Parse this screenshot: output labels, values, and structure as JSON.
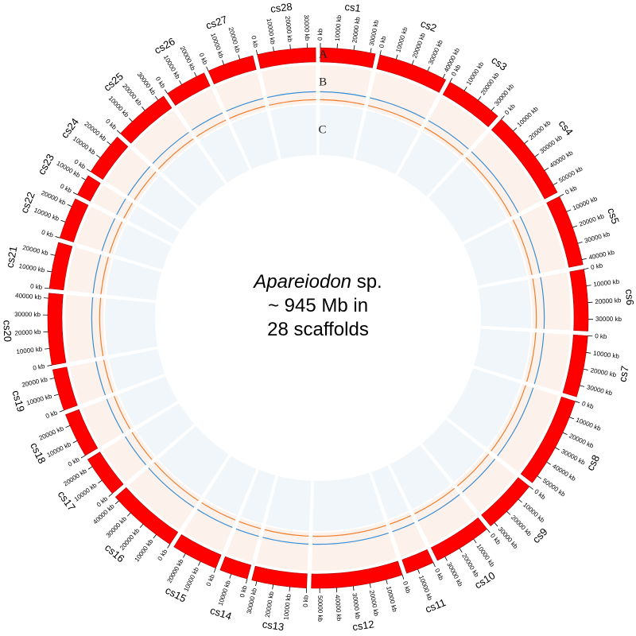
{
  "title": {
    "genus": "Apareiodon",
    "suffix": " sp.",
    "line2": "~ 945 Mb in",
    "line3": "28 scaffolds"
  },
  "tracks": [
    "A",
    "B",
    "C"
  ],
  "scaffolds": [
    {
      "name": "cs1",
      "length": 33000,
      "ticks": [
        {
          "value": 0,
          "label": "0 kb"
        },
        {
          "value": 10000,
          "label": "10000 kb"
        },
        {
          "value": 20000,
          "label": "20000 kb"
        },
        {
          "value": 30000,
          "label": "30000 kb"
        }
      ]
    },
    {
      "name": "cs2",
      "length": 42000,
      "ticks": [
        {
          "value": 0,
          "label": "0 kb"
        },
        {
          "value": 10000,
          "label": "10000 kb"
        },
        {
          "value": 20000,
          "label": "20000 kb"
        },
        {
          "value": 30000,
          "label": "30000 kb"
        },
        {
          "value": 40000,
          "label": "40000 kb"
        }
      ]
    },
    {
      "name": "cs3",
      "length": 35000,
      "ticks": [
        {
          "value": 0,
          "label": "0 kb"
        },
        {
          "value": 10000,
          "label": "10000 kb"
        },
        {
          "value": 20000,
          "label": "20000 kb"
        },
        {
          "value": 30000,
          "label": "30000 kb"
        }
      ]
    },
    {
      "name": "cs4",
      "length": 55000,
      "ticks": [
        {
          "value": 0,
          "label": "0 kb"
        },
        {
          "value": 10000,
          "label": "10000 kb"
        },
        {
          "value": 20000,
          "label": "20000 kb"
        },
        {
          "value": 30000,
          "label": "30000 kb"
        },
        {
          "value": 40000,
          "label": "40000 kb"
        },
        {
          "value": 50000,
          "label": "50000 kb"
        }
      ]
    },
    {
      "name": "cs5",
      "length": 43000,
      "ticks": [
        {
          "value": 0,
          "label": "0 kb"
        },
        {
          "value": 10000,
          "label": "10000 kb"
        },
        {
          "value": 20000,
          "label": "20000 kb"
        },
        {
          "value": 30000,
          "label": "30000 kb"
        },
        {
          "value": 40000,
          "label": "40000 kb"
        }
      ]
    },
    {
      "name": "cs6",
      "length": 37000,
      "ticks": [
        {
          "value": 0,
          "label": "0 kb"
        },
        {
          "value": 10000,
          "label": "10000 kb"
        },
        {
          "value": 20000,
          "label": "20000 kb"
        },
        {
          "value": 30000,
          "label": "30000 kb"
        }
      ]
    },
    {
      "name": "cs7",
      "length": 37000,
      "ticks": [
        {
          "value": 0,
          "label": "0 kb"
        },
        {
          "value": 10000,
          "label": "10000 kb"
        },
        {
          "value": 20000,
          "label": "20000 kb"
        },
        {
          "value": 30000,
          "label": "30000 kb"
        }
      ]
    },
    {
      "name": "cs8",
      "length": 55000,
      "ticks": [
        {
          "value": 0,
          "label": "0 kb"
        },
        {
          "value": 10000,
          "label": "10000 kb"
        },
        {
          "value": 20000,
          "label": "20000 kb"
        },
        {
          "value": 30000,
          "label": "30000 kb"
        },
        {
          "value": 40000,
          "label": "40000 kb"
        },
        {
          "value": 50000,
          "label": "50000 kb"
        }
      ]
    },
    {
      "name": "cs9",
      "length": 33000,
      "ticks": [
        {
          "value": 0,
          "label": "0 kb"
        },
        {
          "value": 10000,
          "label": "10000 kb"
        },
        {
          "value": 20000,
          "label": "20000 kb"
        },
        {
          "value": 30000,
          "label": "30000 kb"
        }
      ]
    },
    {
      "name": "cs10",
      "length": 35000,
      "ticks": [
        {
          "value": 0,
          "label": "0 kb"
        },
        {
          "value": 10000,
          "label": "10000 kb"
        },
        {
          "value": 20000,
          "label": "20000 kb"
        },
        {
          "value": 30000,
          "label": "30000 kb"
        }
      ]
    },
    {
      "name": "cs11",
      "length": 17000,
      "ticks": [
        {
          "value": 0,
          "label": "0 kb"
        },
        {
          "value": 10000,
          "label": "10000 kb"
        }
      ]
    },
    {
      "name": "cs12",
      "length": 55000,
      "ticks": [
        {
          "value": 0,
          "label": "0 kb"
        },
        {
          "value": 10000,
          "label": "10000 kb"
        },
        {
          "value": 20000,
          "label": "20000 kb"
        },
        {
          "value": 30000,
          "label": "30000 kb"
        },
        {
          "value": 40000,
          "label": "40000 kb"
        },
        {
          "value": 50000,
          "label": "50000 kb"
        }
      ]
    },
    {
      "name": "cs13",
      "length": 33000,
      "ticks": [
        {
          "value": 0,
          "label": "0 kb"
        },
        {
          "value": 10000,
          "label": "10000 kb"
        },
        {
          "value": 20000,
          "label": "20000 kb"
        },
        {
          "value": 30000,
          "label": "30000 kb"
        }
      ]
    },
    {
      "name": "cs14",
      "length": 17000,
      "ticks": [
        {
          "value": 0,
          "label": "0 kb"
        },
        {
          "value": 10000,
          "label": "10000 kb"
        }
      ]
    },
    {
      "name": "cs15",
      "length": 28000,
      "ticks": [
        {
          "value": 0,
          "label": "0 kb"
        },
        {
          "value": 10000,
          "label": "10000 kb"
        },
        {
          "value": 20000,
          "label": "20000 kb"
        }
      ]
    },
    {
      "name": "cs16",
      "length": 43000,
      "ticks": [
        {
          "value": 0,
          "label": "0 kb"
        },
        {
          "value": 10000,
          "label": "10000 kb"
        },
        {
          "value": 20000,
          "label": "20000 kb"
        },
        {
          "value": 30000,
          "label": "30000 kb"
        },
        {
          "value": 40000,
          "label": "40000 kb"
        }
      ]
    },
    {
      "name": "cs17",
      "length": 25000,
      "ticks": [
        {
          "value": 0,
          "label": "0 kb"
        },
        {
          "value": 10000,
          "label": "10000 kb"
        },
        {
          "value": 20000,
          "label": "20000 kb"
        }
      ]
    },
    {
      "name": "cs18",
      "length": 27000,
      "ticks": [
        {
          "value": 0,
          "label": "0 kb"
        },
        {
          "value": 10000,
          "label": "10000 kb"
        },
        {
          "value": 20000,
          "label": "20000 kb"
        }
      ]
    },
    {
      "name": "cs19",
      "length": 25000,
      "ticks": [
        {
          "value": 0,
          "label": "0 kb"
        },
        {
          "value": 10000,
          "label": "10000 kb"
        },
        {
          "value": 20000,
          "label": "20000 kb"
        }
      ]
    },
    {
      "name": "cs20",
      "length": 43000,
      "ticks": [
        {
          "value": 0,
          "label": "0 kb"
        },
        {
          "value": 10000,
          "label": "10000 kb"
        },
        {
          "value": 20000,
          "label": "20000 kb"
        },
        {
          "value": 30000,
          "label": "30000 kb"
        },
        {
          "value": 40000,
          "label": "40000 kb"
        }
      ]
    },
    {
      "name": "cs21",
      "length": 28000,
      "ticks": [
        {
          "value": 0,
          "label": "0 kb"
        },
        {
          "value": 10000,
          "label": "10000 kb"
        },
        {
          "value": 20000,
          "label": "20000 kb"
        }
      ]
    },
    {
      "name": "cs22",
      "length": 25000,
      "ticks": [
        {
          "value": 0,
          "label": "0 kb"
        },
        {
          "value": 10000,
          "label": "10000 kb"
        },
        {
          "value": 20000,
          "label": "20000 kb"
        }
      ]
    },
    {
      "name": "cs23",
      "length": 13000,
      "ticks": [
        {
          "value": 0,
          "label": "0 kb"
        },
        {
          "value": 10000,
          "label": "10000 kb"
        }
      ]
    },
    {
      "name": "cs24",
      "length": 26000,
      "ticks": [
        {
          "value": 0,
          "label": "0 kb"
        },
        {
          "value": 10000,
          "label": "10000 kb"
        },
        {
          "value": 20000,
          "label": "20000 kb"
        }
      ]
    },
    {
      "name": "cs25",
      "length": 34000,
      "ticks": [
        {
          "value": 0,
          "label": "0 kb"
        },
        {
          "value": 10000,
          "label": "10000 kb"
        },
        {
          "value": 20000,
          "label": "20000 kb"
        },
        {
          "value": 30000,
          "label": "30000 kb"
        }
      ]
    },
    {
      "name": "cs26",
      "length": 25000,
      "ticks": [
        {
          "value": 0,
          "label": "0 kb"
        },
        {
          "value": 10000,
          "label": "10000 kb"
        },
        {
          "value": 20000,
          "label": "20000 kb"
        }
      ]
    },
    {
      "name": "cs27",
      "length": 28000,
      "ticks": [
        {
          "value": 0,
          "label": "0 kb"
        },
        {
          "value": 10000,
          "label": "10000 kb"
        },
        {
          "value": 20000,
          "label": "20000 kb"
        }
      ]
    },
    {
      "name": "cs28",
      "length": 35000,
      "ticks": [
        {
          "value": 0,
          "label": "0 kb"
        },
        {
          "value": 10000,
          "label": "10000 kb"
        },
        {
          "value": 20000,
          "label": "20000 kb"
        },
        {
          "value": 30000,
          "label": "30000 kb"
        }
      ]
    }
  ]
}
